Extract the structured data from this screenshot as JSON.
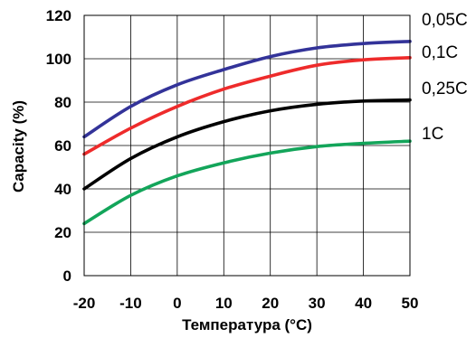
{
  "chart_data": {
    "type": "line",
    "xlabel": "Температура (°C)",
    "ylabel": "Capacity (%)",
    "xlim": [
      -20,
      50
    ],
    "ylim": [
      0,
      120
    ],
    "x_ticks": [
      -20,
      -10,
      0,
      10,
      20,
      30,
      40,
      50
    ],
    "x_tick_labels": [
      "-20",
      "-10",
      "0",
      "10",
      "20",
      "30",
      "40",
      "50"
    ],
    "y_ticks": [
      0,
      20,
      40,
      60,
      80,
      100,
      120
    ],
    "y_tick_labels": [
      "0",
      "20",
      "40",
      "60",
      "80",
      "100",
      "120"
    ],
    "grid": true,
    "legend": "right",
    "series": [
      {
        "name": "0,05C",
        "color": "#333399",
        "x": [
          -20,
          -10,
          0,
          10,
          20,
          30,
          40,
          50
        ],
        "y": [
          64,
          78,
          88,
          95,
          101,
          105,
          107,
          108
        ]
      },
      {
        "name": "0,1C",
        "color": "#ee2b2b",
        "x": [
          -20,
          -10,
          0,
          10,
          20,
          30,
          40,
          50
        ],
        "y": [
          56,
          68,
          78,
          86,
          92,
          97,
          99.5,
          100.5
        ]
      },
      {
        "name": "0,25C",
        "color": "#000000",
        "x": [
          -20,
          -10,
          0,
          10,
          20,
          30,
          40,
          50
        ],
        "y": [
          40,
          54,
          64,
          71,
          76,
          79,
          80.5,
          81
        ]
      },
      {
        "name": "1C",
        "color": "#13a55a",
        "x": [
          -20,
          -10,
          0,
          10,
          20,
          30,
          40,
          50
        ],
        "y": [
          24,
          37,
          46,
          52,
          56.5,
          59.5,
          61,
          62
        ]
      }
    ]
  }
}
